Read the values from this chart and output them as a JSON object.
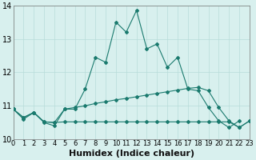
{
  "title": "",
  "xlabel": "Humidex (Indice chaleur)",
  "ylabel": "",
  "x": [
    0,
    1,
    2,
    3,
    4,
    5,
    6,
    7,
    8,
    9,
    10,
    11,
    12,
    13,
    14,
    15,
    16,
    17,
    18,
    19,
    20,
    21,
    22,
    23
  ],
  "line1": [
    10.9,
    10.6,
    10.8,
    10.5,
    10.4,
    10.9,
    10.9,
    11.5,
    12.45,
    12.3,
    13.5,
    13.2,
    13.85,
    12.7,
    12.85,
    12.15,
    12.45,
    11.5,
    11.45,
    10.95,
    10.55,
    10.35,
    10.55,
    null
  ],
  "line2": [
    10.9,
    10.65,
    10.8,
    10.52,
    10.5,
    10.9,
    10.95,
    11.0,
    11.07,
    11.12,
    11.18,
    11.22,
    11.27,
    11.32,
    11.37,
    11.42,
    11.47,
    11.52,
    11.55,
    11.45,
    10.95,
    10.55,
    10.35,
    10.55
  ],
  "line3": [
    10.9,
    10.65,
    10.8,
    10.52,
    10.5,
    10.52,
    10.52,
    10.52,
    10.52,
    10.52,
    10.52,
    10.52,
    10.52,
    10.52,
    10.52,
    10.52,
    10.52,
    10.52,
    10.52,
    10.52,
    10.52,
    10.52,
    10.35,
    10.55
  ],
  "ylim": [
    10.0,
    14.0
  ],
  "xlim": [
    0,
    23
  ],
  "line_color": "#1a7a6e",
  "bg_color": "#d8f0ee",
  "grid_color": "#b8ddd9",
  "tick_fontsize": 6,
  "label_fontsize": 8
}
